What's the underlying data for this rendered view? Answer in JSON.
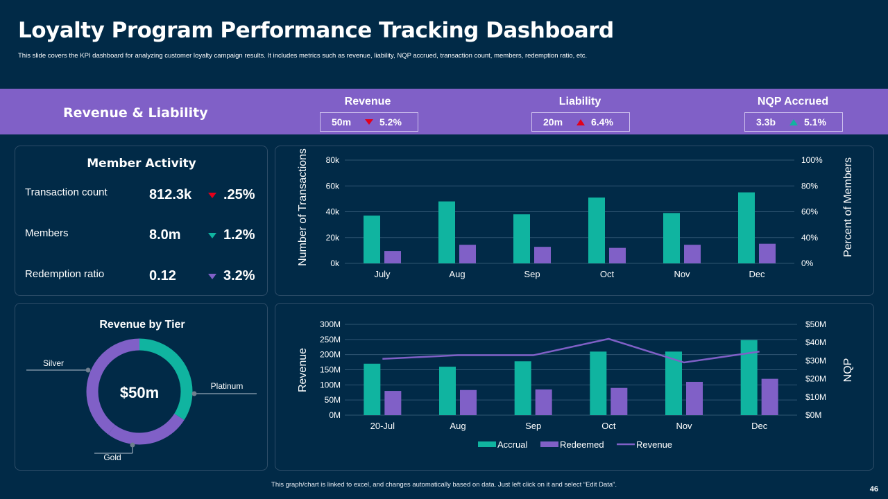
{
  "header": {
    "title": "Loyalty Program Performance Tracking Dashboard",
    "subtitle": "This slide covers the KPI dashboard for analyzing customer loyalty campaign results. It includes metrics such as revenue, liability, NQP  accrued, transaction count, members, redemption ratio, etc."
  },
  "band": {
    "title": "Revenue & Liability",
    "kpis": [
      {
        "label": "Revenue",
        "value": "50m",
        "change": "5.2%",
        "direction": "down",
        "color": "#e3001b"
      },
      {
        "label": "Liability",
        "value": "20m",
        "change": "6.4%",
        "direction": "up",
        "color": "#e3001b"
      },
      {
        "label": "NQP Accrued",
        "value": "3.3b",
        "change": "5.1%",
        "direction": "up",
        "color": "#10b4a0"
      }
    ]
  },
  "member_activity": {
    "title": "Member Activity",
    "rows": [
      {
        "label": "Transaction count",
        "value": "812.3k",
        "change": ".25%",
        "color": "#e3001b"
      },
      {
        "label": "Members",
        "value": "8.0m",
        "change": "1.2%",
        "color": "#10b4a0"
      },
      {
        "label": "Redemption ratio",
        "value": "0.12",
        "change": "3.2%",
        "color": "#8060c7"
      }
    ]
  },
  "colors": {
    "teal": "#10b4a0",
    "purple": "#8060c7",
    "background": "#012a47"
  },
  "chart_data": [
    {
      "type": "bar",
      "categories": [
        "July",
        "Aug",
        "Sep",
        "Oct",
        "Nov",
        "Dec"
      ],
      "series": [
        {
          "name": "Transactions",
          "axis": "left",
          "color": "#10b4a0",
          "values": [
            37000,
            48000,
            38000,
            51000,
            39000,
            55000
          ]
        },
        {
          "name": "Members",
          "axis": "right",
          "color": "#8060c7",
          "values": [
            12,
            18,
            16,
            15,
            18,
            19
          ]
        }
      ],
      "ylabel": "Number of Transactions",
      "ylabel_right": "Percent of Members",
      "ylim": [
        0,
        80000
      ],
      "ylim_right": [
        0,
        100
      ],
      "yticks": [
        "0k",
        "20k",
        "40k",
        "60k",
        "80k"
      ],
      "yticks_right": [
        "0%",
        "40%",
        "60%",
        "80%",
        "100%"
      ],
      "grid": true
    },
    {
      "type": "bar",
      "categories": [
        "20-Jul",
        "Aug",
        "Sep",
        "Oct",
        "Nov",
        "Dec"
      ],
      "series": [
        {
          "name": "Accrual",
          "kind": "bar",
          "axis": "left",
          "color": "#10b4a0",
          "values": [
            170,
            160,
            178,
            210,
            210,
            248
          ]
        },
        {
          "name": "Redeemed",
          "kind": "bar",
          "axis": "left",
          "color": "#8060c7",
          "values": [
            80,
            83,
            85,
            90,
            110,
            120
          ]
        },
        {
          "name": "Revenue",
          "kind": "line",
          "axis": "right",
          "color": "#8060c7",
          "values": [
            31,
            33,
            33,
            42,
            29,
            35
          ]
        }
      ],
      "ylabel": "Revenue",
      "ylabel_right": "NQP",
      "ylim": [
        0,
        300
      ],
      "ylim_right": [
        0,
        50
      ],
      "yticks": [
        "0M",
        "50M",
        "100M",
        "150M",
        "200M",
        "250M",
        "300M"
      ],
      "yticks_right": [
        "$0M",
        "$10M",
        "$20M",
        "$30M",
        "$40M",
        "$50M"
      ],
      "legend": [
        "Accrual",
        "Redeemed",
        "Revenue"
      ],
      "legend_position": "bottom",
      "grid": true
    },
    {
      "type": "pie",
      "title": "Revenue by Tier",
      "center_label": "$50m",
      "categories": [
        "Platinum",
        "Gold",
        "Silver"
      ],
      "values": [
        34,
        26,
        40
      ],
      "colors": [
        "#10b4a0",
        "#8060c7",
        "#8060c7"
      ]
    }
  ],
  "footer": {
    "note": "This graph/chart is linked to excel, and changes automatically based on data. Just left click on it and select “Edit Data”.",
    "page_number": "46"
  }
}
